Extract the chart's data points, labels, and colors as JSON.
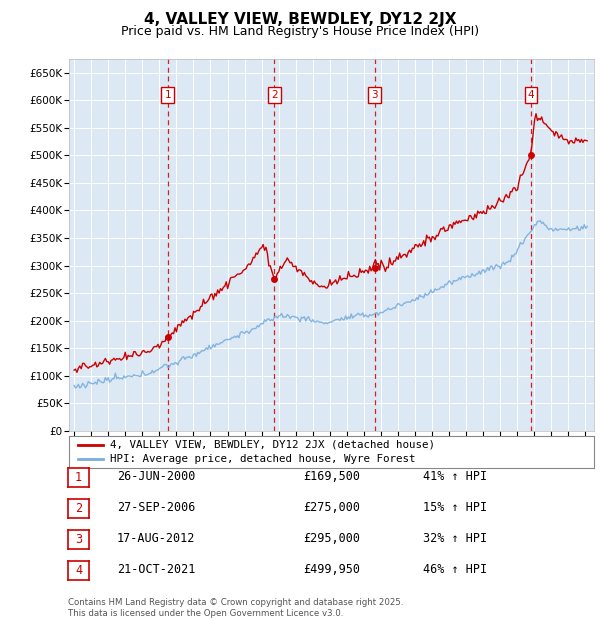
{
  "title": "4, VALLEY VIEW, BEWDLEY, DY12 2JX",
  "subtitle": "Price paid vs. HM Land Registry's House Price Index (HPI)",
  "xlim": [
    1994.7,
    2025.5
  ],
  "ylim": [
    0,
    675000
  ],
  "yticks": [
    0,
    50000,
    100000,
    150000,
    200000,
    250000,
    300000,
    350000,
    400000,
    450000,
    500000,
    550000,
    600000,
    650000
  ],
  "bg_color": "#dce9f5",
  "grid_color": "#ffffff",
  "sale_dates": [
    2000.487,
    2006.743,
    2012.633,
    2021.803
  ],
  "sale_prices": [
    169500,
    275000,
    295000,
    499950
  ],
  "sale_labels": [
    "1",
    "2",
    "3",
    "4"
  ],
  "vline_color": "#cc0000",
  "red_line_color": "#cc0000",
  "blue_line_color": "#7aaedc",
  "legend_entry1": "4, VALLEY VIEW, BEWDLEY, DY12 2JX (detached house)",
  "legend_entry2": "HPI: Average price, detached house, Wyre Forest",
  "table_entries": [
    {
      "label": "1",
      "date": "26-JUN-2000",
      "price": "£169,500",
      "hpi": "41% ↑ HPI"
    },
    {
      "label": "2",
      "date": "27-SEP-2006",
      "price": "£275,000",
      "hpi": "15% ↑ HPI"
    },
    {
      "label": "3",
      "date": "17-AUG-2012",
      "price": "£295,000",
      "hpi": "32% ↑ HPI"
    },
    {
      "label": "4",
      "date": "21-OCT-2021",
      "price": "£499,950",
      "hpi": "46% ↑ HPI"
    }
  ],
  "footer": "Contains HM Land Registry data © Crown copyright and database right 2025.\nThis data is licensed under the Open Government Licence v3.0.",
  "title_fontsize": 11,
  "subtitle_fontsize": 9,
  "tick_fontsize": 7.5,
  "label_fontsize": 8.5
}
